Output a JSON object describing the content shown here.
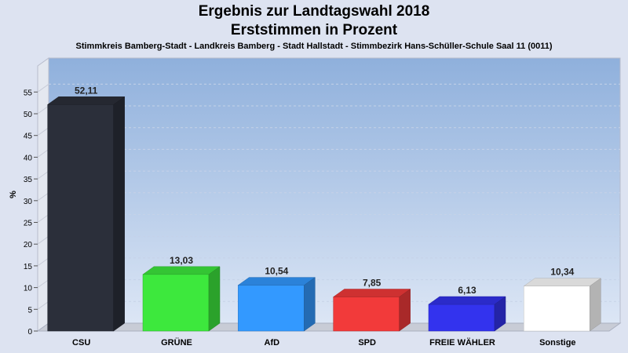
{
  "chart_data": {
    "type": "bar",
    "title": "Ergebnis zur Landtagswahl 2018",
    "subtitle": "Erststimmen in Prozent",
    "caption": "Stimmkreis Bamberg-Stadt - Landkreis Bamberg - Stadt Hallstadt - Stimmbezirk Hans-Schüller-Schule Saal 11 (0011)",
    "ylabel": "%",
    "xlabel": "",
    "ylim": [
      0,
      55
    ],
    "yticks": [
      0,
      5,
      10,
      15,
      20,
      25,
      30,
      35,
      40,
      45,
      50,
      55
    ],
    "categories": [
      "CSU",
      "GRÜNE",
      "AfD",
      "SPD",
      "FREIE WÄHLER",
      "Sonstige"
    ],
    "values": [
      52.11,
      13.03,
      10.54,
      7.85,
      6.13,
      10.34
    ],
    "value_labels": [
      "52,11",
      "13,03",
      "10,54",
      "7,85",
      "6,13",
      "10,34"
    ],
    "colors": [
      "#2b2f3a",
      "#3de83d",
      "#3399ff",
      "#f23a3a",
      "#3333ee",
      "#ffffff"
    ],
    "grid": true,
    "legend": "none"
  }
}
